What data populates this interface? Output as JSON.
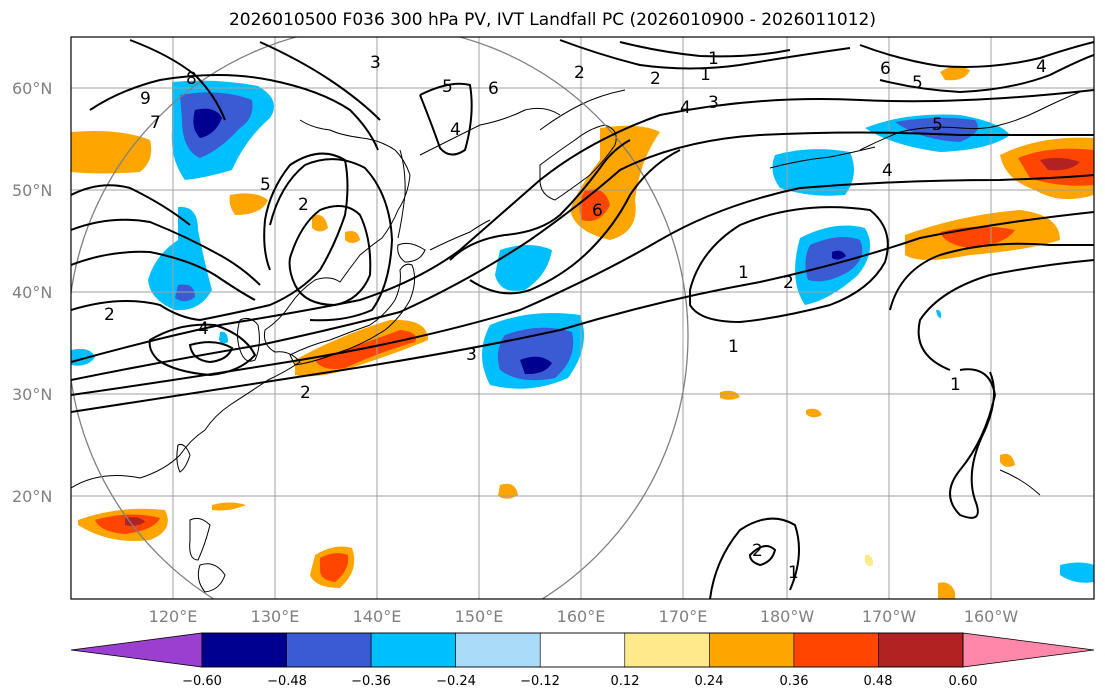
{
  "title": "2026010500 F036 300 hPa PV, IVT Landfall PC (2026010900 - 2026011012)",
  "map": {
    "lat_labels": [
      "60°N",
      "50°N",
      "40°N",
      "30°N",
      "20°N"
    ],
    "lon_labels": [
      "120°E",
      "130°E",
      "140°E",
      "150°E",
      "160°E",
      "170°E",
      "180°W",
      "170°W",
      "160°W"
    ]
  },
  "colorbar": {
    "ticks": [
      "−0.60",
      "−0.48",
      "−0.36",
      "−0.24",
      "−0.12",
      "0.12",
      "0.24",
      "0.36",
      "0.48",
      "0.60"
    ],
    "colors": {
      "under": "#9b3fd1",
      "bins": [
        "#000090",
        "#3a5bd4",
        "#00bfff",
        "#aadcfa",
        "#ffffff",
        "#ffe98a",
        "#ffa500",
        "#ff4500",
        "#b22222"
      ],
      "over": "#ff88aa"
    }
  },
  "contour_labels": [
    "8",
    "9",
    "7",
    "5",
    "2",
    "2",
    "4",
    "3",
    "5",
    "6",
    "4",
    "2",
    "1",
    "3",
    "4",
    "6",
    "6",
    "5",
    "4",
    "5",
    "4",
    "2",
    "1",
    "1",
    "2",
    "3",
    "2",
    "1",
    "1",
    "2",
    "1"
  ],
  "colors": {
    "grid": "#a0a0a0",
    "coast": "#000000",
    "contour": "#000000",
    "circle": "#808080"
  }
}
